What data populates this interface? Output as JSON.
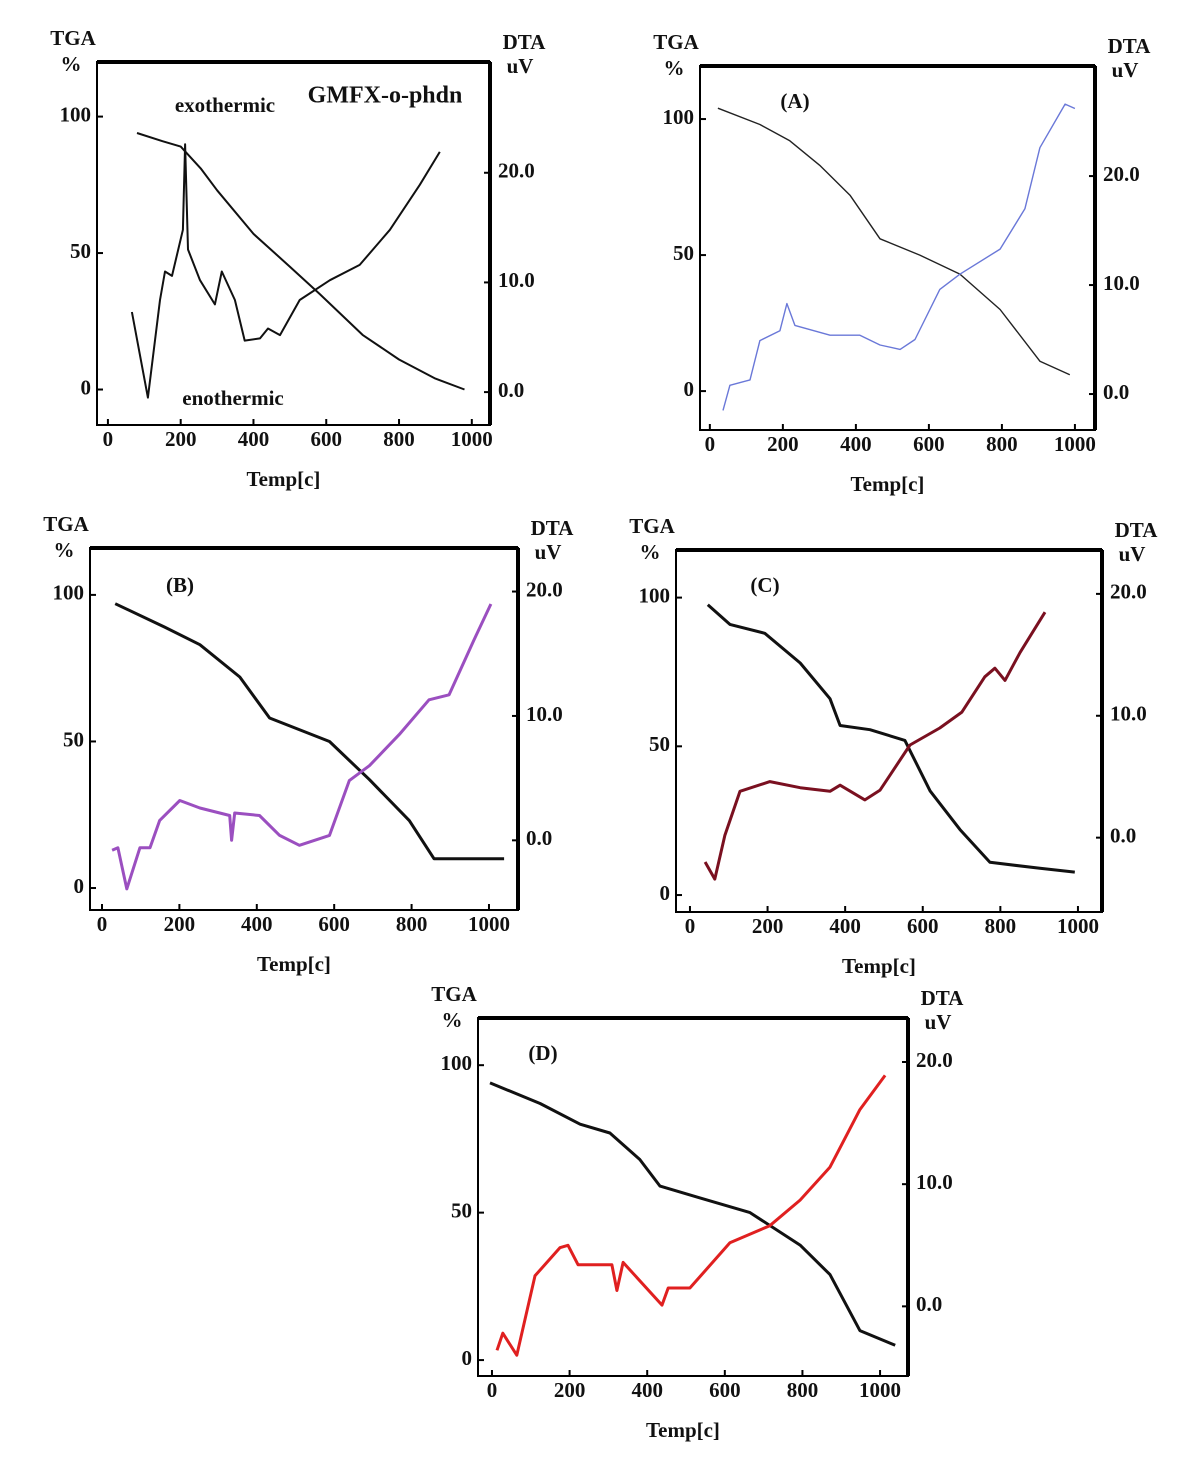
{
  "chart_data": [
    {
      "type": "line",
      "title": "GMFX-o-phdn",
      "annotations": [
        "exothermic",
        "enothermic"
      ],
      "y_label": "TGA",
      "y_unit": "%",
      "y2_label": "DTA",
      "y2_unit": "uV",
      "xlabel": "Temp[c]",
      "xlim": [
        -30,
        1050
      ],
      "ylim": [
        -13,
        120
      ],
      "y2lim": [
        -3,
        30.1
      ],
      "xticks": [
        0,
        200,
        400,
        600,
        800,
        1000
      ],
      "yticks": [
        0,
        50,
        100
      ],
      "y2ticks": [
        {
          "value": 0,
          "label": "0.0"
        },
        {
          "value": 10,
          "label": "10.0"
        },
        {
          "value": 20,
          "label": "20.0"
        }
      ],
      "series": [
        {
          "color": "#111111",
          "x": [
            80,
            150,
            200,
            255,
            300,
            400,
            500,
            582,
            700,
            800,
            900,
            980
          ],
          "values": [
            94,
            91,
            89,
            81,
            73,
            57,
            45,
            35,
            20,
            11,
            4,
            0
          ]
        },
        {
          "color": "#111111",
          "axis": "y2",
          "x": [
            66,
            88,
            110,
            143,
            157,
            176,
            206,
            212,
            220,
            253,
            294,
            313,
            349,
            376,
            418,
            440,
            473,
            527,
            610,
            692,
            775,
            857,
            912
          ],
          "values": [
            7.3,
            3.4,
            -0.5,
            8.4,
            11,
            10.6,
            14.8,
            22.6,
            13,
            10.2,
            8,
            11,
            8.4,
            4.7,
            4.9,
            5.8,
            5.2,
            8.4,
            10.2,
            11.6,
            14.8,
            18.9,
            21.9
          ]
        }
      ]
    },
    {
      "type": "line",
      "title": "(A)",
      "y_label": "TGA",
      "y_unit": "%",
      "y2_label": "DTA",
      "y2_unit": "uV",
      "xlabel": "Temp[c]",
      "xlim": [
        -27,
        1055
      ],
      "ylim": [
        -14.3,
        119.5
      ],
      "y2lim": [
        -3.3,
        30.1
      ],
      "xticks": [
        0,
        200,
        400,
        600,
        800,
        1000
      ],
      "yticks": [
        0,
        50,
        100
      ],
      "y2ticks": [
        {
          "value": 0,
          "label": "0.0"
        },
        {
          "value": 10,
          "label": "10.0"
        },
        {
          "value": 20,
          "label": "20.0"
        }
      ],
      "series": [
        {
          "color": "#222222",
          "x": [
            22,
            137,
            219,
            301,
            384,
            466,
            575,
            685,
            795,
            904,
            986
          ],
          "values": [
            104,
            98,
            92,
            83,
            72,
            56,
            50,
            43,
            30,
            11,
            6
          ]
        },
        {
          "color": "#6a78d8",
          "axis": "y2",
          "x": [
            36,
            55,
            110,
            137,
            192,
            211,
            233,
            329,
            411,
            466,
            521,
            562,
            630,
            685,
            795,
            863,
            904,
            973,
            1000
          ],
          "values": [
            -1.5,
            0.8,
            1.3,
            4.9,
            5.8,
            8.3,
            6.3,
            5.4,
            5.4,
            4.5,
            4.1,
            5,
            9.6,
            11,
            13.3,
            17,
            22.6,
            26.6,
            26.2
          ]
        }
      ]
    },
    {
      "type": "line",
      "title": "(B)",
      "y_label": "TGA",
      "y_unit": "%",
      "y2_label": "DTA",
      "y2_unit": "uV",
      "xlabel": "Temp[c]",
      "xlim": [
        -31,
        1075
      ],
      "ylim": [
        -7.5,
        116
      ],
      "y2lim": [
        -5.6,
        23.5
      ],
      "xticks": [
        0,
        200,
        400,
        600,
        800,
        1000
      ],
      "yticks": [
        0,
        50,
        100
      ],
      "y2ticks": [
        {
          "value": 0,
          "label": "0.0"
        },
        {
          "value": 10,
          "label": "10.0"
        },
        {
          "value": 20,
          "label": "20.0"
        }
      ],
      "series": [
        {
          "color": "#111111",
          "x": [
            34,
            162,
            253,
            356,
            433,
            588,
            691,
            794,
            858,
            1039
          ],
          "values": [
            97,
            89,
            83,
            72,
            58,
            50,
            37,
            23,
            10,
            10
          ]
        },
        {
          "color": "#9b4fc0",
          "axis": "y2",
          "x": [
            26,
            41,
            64,
            98,
            124,
            149,
            201,
            253,
            330,
            335,
            343,
            407,
            459,
            510,
            588,
            639,
            691,
            768,
            845,
            897,
            961,
            1005
          ],
          "values": [
            -0.8,
            -0.6,
            -3.9,
            -0.6,
            -0.6,
            1.6,
            3.2,
            2.6,
            2,
            0,
            2.2,
            2,
            0.4,
            -0.4,
            0.4,
            4.8,
            6,
            8.5,
            11.3,
            11.7,
            16.1,
            19
          ]
        }
      ]
    },
    {
      "type": "line",
      "title": "(C)",
      "y_label": "TGA",
      "y_unit": "%",
      "y2_label": "DTA",
      "y2_unit": "uV",
      "xlabel": "Temp[c]",
      "xlim": [
        -36,
        1062
      ],
      "ylim": [
        -5.7,
        116
      ],
      "y2lim": [
        -6.1,
        23.6
      ],
      "xticks": [
        0,
        200,
        400,
        600,
        800,
        1000
      ],
      "yticks": [
        0,
        50,
        100
      ],
      "y2ticks": [
        {
          "value": 0,
          "label": "0.0"
        },
        {
          "value": 10,
          "label": "10.0"
        },
        {
          "value": 20,
          "label": "20.0"
        }
      ],
      "series": [
        {
          "color": "#111111",
          "x": [
            46,
            103,
            193,
            284,
            361,
            387,
            464,
            554,
            619,
            696,
            773,
            902,
            992
          ],
          "values": [
            97.6,
            91,
            88,
            78,
            66,
            57,
            55.6,
            52,
            35,
            22,
            11,
            9,
            7.7
          ]
        },
        {
          "color": "#7a1020",
          "axis": "y2",
          "x": [
            39,
            64,
            90,
            129,
            206,
            284,
            361,
            387,
            451,
            490,
            567,
            644,
            701,
            760,
            786,
            812,
            851,
            915
          ],
          "values": [
            -2,
            -3.4,
            0.2,
            3.8,
            4.6,
            4.1,
            3.8,
            4.3,
            3.1,
            3.9,
            7.6,
            9,
            10.3,
            13.2,
            13.9,
            12.9,
            15.2,
            18.5
          ]
        }
      ]
    },
    {
      "type": "line",
      "title": "(D)",
      "y_label": "TGA",
      "y_unit": "%",
      "y2_label": "DTA",
      "y2_unit": "uV",
      "xlabel": "Temp[c]",
      "xlim": [
        -36,
        1072
      ],
      "ylim": [
        -5.4,
        116
      ],
      "y2lim": [
        -5.7,
        23.6
      ],
      "xticks": [
        0,
        200,
        400,
        600,
        800,
        1000
      ],
      "yticks": [
        0,
        50,
        100
      ],
      "y2ticks": [
        {
          "value": 0,
          "label": "0.0"
        },
        {
          "value": 10,
          "label": "10.0"
        },
        {
          "value": 20,
          "label": "20.0"
        }
      ],
      "series": [
        {
          "color": "#111111",
          "x": [
            -5,
            124,
            227,
            304,
            381,
            433,
            536,
            665,
            794,
            871,
            948,
            1039
          ],
          "values": [
            94,
            87,
            80,
            77,
            68,
            59,
            55,
            50,
            39,
            29,
            10,
            5
          ]
        },
        {
          "color": "#e02020",
          "axis": "y2",
          "x": [
            13,
            28,
            64,
            111,
            175,
            196,
            222,
            309,
            322,
            338,
            438,
            454,
            510,
            613,
            716,
            794,
            871,
            948,
            1013
          ],
          "values": [
            -3.6,
            -2.2,
            -4,
            2.5,
            4.8,
            5,
            3.4,
            3.4,
            1.3,
            3.6,
            0.1,
            1.5,
            1.5,
            5.2,
            6.6,
            8.7,
            11.4,
            16.1,
            18.9
          ]
        }
      ]
    }
  ]
}
